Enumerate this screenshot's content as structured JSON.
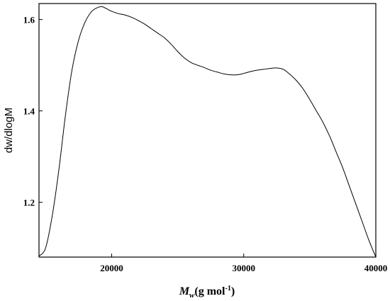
{
  "chart_data": {
    "type": "line",
    "title": "",
    "xlabel": {
      "symbol": "M",
      "subscript": "w",
      "unit_prefix": "(g mol",
      "superscript": "-1",
      "unit_suffix": ")"
    },
    "ylabel": "dw/dlogM",
    "xlim": [
      14500,
      40000
    ],
    "ylim": [
      1.08,
      1.635
    ],
    "x_ticks": [
      20000,
      30000,
      40000
    ],
    "x_tick_labels": [
      "20000",
      "30000",
      "40000"
    ],
    "y_ticks": [
      1.2,
      1.4,
      1.6
    ],
    "y_tick_labels": [
      "1.2",
      "1.4",
      "1.6"
    ],
    "grid": false,
    "series": [
      {
        "color": "#000000",
        "x": [
          14500,
          15000,
          15500,
          16000,
          16500,
          17000,
          17500,
          18000,
          18500,
          19000,
          19300,
          19600,
          20000,
          20500,
          21000,
          21500,
          22000,
          22500,
          23000,
          23500,
          24000,
          24500,
          25000,
          25500,
          26000,
          26500,
          27000,
          27500,
          28000,
          28500,
          29000,
          29500,
          30000,
          30500,
          31000,
          31500,
          32000,
          32500,
          33000,
          33500,
          34000,
          34500,
          35000,
          35500,
          36000,
          36500,
          37000,
          37500,
          38000,
          38500,
          39000,
          39500,
          40000
        ],
        "y": [
          1.082,
          1.1,
          1.17,
          1.27,
          1.39,
          1.49,
          1.555,
          1.595,
          1.618,
          1.627,
          1.628,
          1.624,
          1.618,
          1.613,
          1.61,
          1.605,
          1.598,
          1.59,
          1.58,
          1.57,
          1.56,
          1.546,
          1.53,
          1.516,
          1.506,
          1.5,
          1.495,
          1.489,
          1.485,
          1.481,
          1.479,
          1.479,
          1.482,
          1.486,
          1.489,
          1.491,
          1.493,
          1.494,
          1.491,
          1.48,
          1.466,
          1.448,
          1.425,
          1.4,
          1.375,
          1.345,
          1.31,
          1.275,
          1.235,
          1.195,
          1.155,
          1.115,
          1.08
        ]
      }
    ]
  }
}
